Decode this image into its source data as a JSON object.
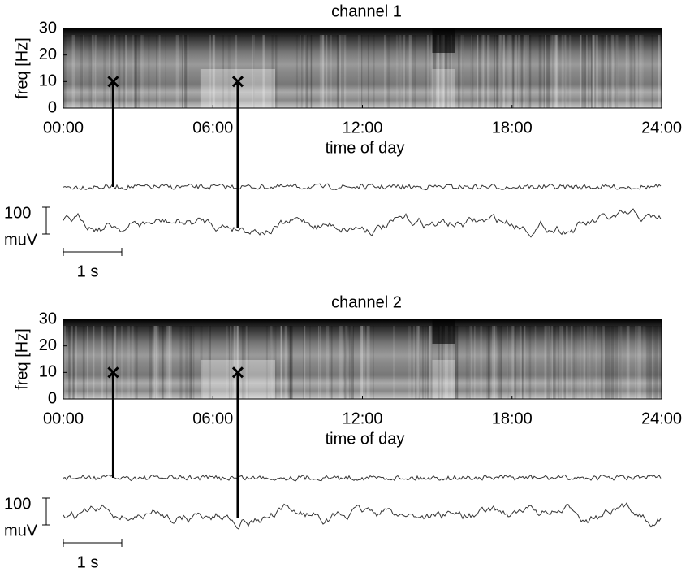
{
  "chart_data": [
    {
      "type": "heatmap",
      "title": "channel 1",
      "y_label": "freq [Hz]",
      "x_label": "time of day",
      "ylim": [
        0,
        30
      ],
      "yticks": [
        0,
        10,
        20,
        30
      ],
      "xlim": [
        0,
        24
      ],
      "xticks": [
        {
          "value": 0,
          "label": "00:00"
        },
        {
          "value": 6,
          "label": "06:00"
        },
        {
          "value": 12,
          "label": "12:00"
        },
        {
          "value": 18,
          "label": "18:00"
        },
        {
          "value": 24,
          "label": "24:00"
        }
      ],
      "markers": {
        "x": [
          2,
          7
        ],
        "y": [
          10,
          10
        ]
      },
      "scale_amplitude": "100",
      "scale_unit": "muV",
      "scale_time": "1 s"
    },
    {
      "type": "heatmap",
      "title": "channel 2",
      "y_label": "freq [Hz]",
      "x_label": "time of day",
      "ylim": [
        0,
        30
      ],
      "yticks": [
        0,
        10,
        20,
        30
      ],
      "xlim": [
        0,
        24
      ],
      "xticks": [
        {
          "value": 0,
          "label": "00:00"
        },
        {
          "value": 6,
          "label": "06:00"
        },
        {
          "value": 12,
          "label": "12:00"
        },
        {
          "value": 18,
          "label": "18:00"
        },
        {
          "value": 24,
          "label": "24:00"
        }
      ],
      "markers": {
        "x": [
          2,
          7
        ],
        "y": [
          10,
          10
        ]
      },
      "scale_amplitude": "100",
      "scale_unit": "muV",
      "scale_time": "1 s"
    }
  ]
}
